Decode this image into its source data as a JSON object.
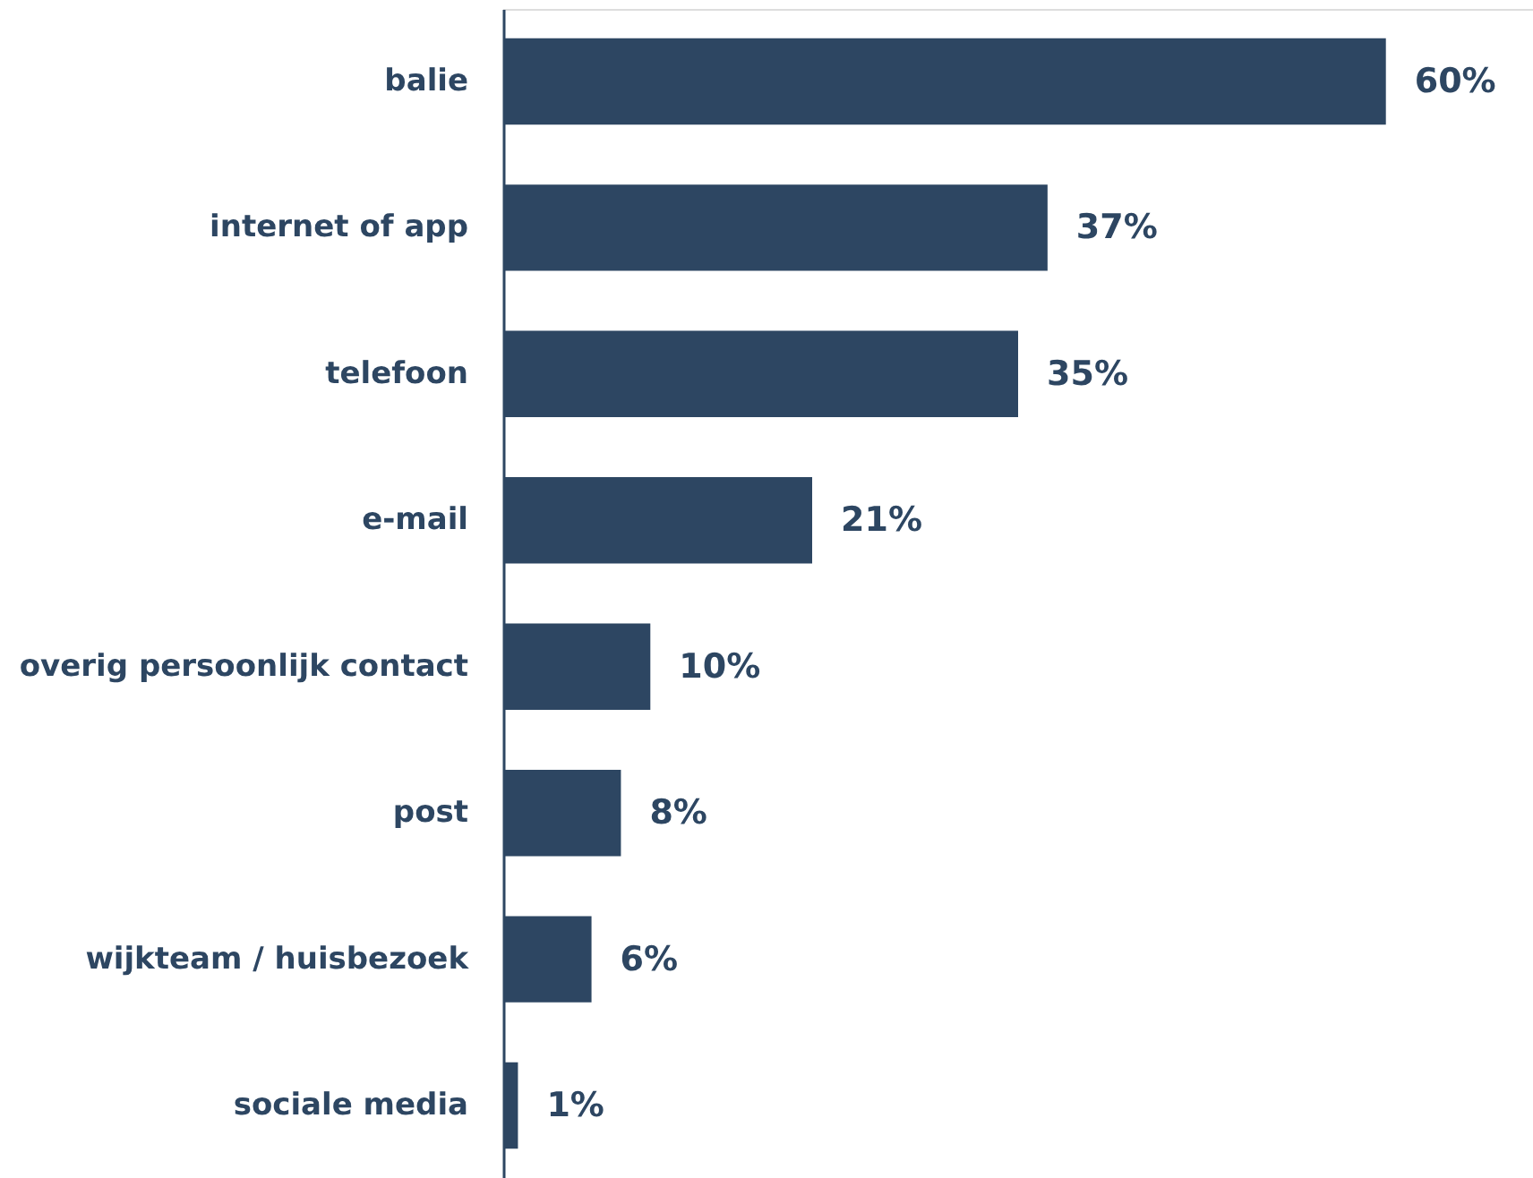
{
  "chart_data": {
    "type": "bar",
    "orientation": "horizontal",
    "categories": [
      "balie",
      "internet of app",
      "telefoon",
      "e-mail",
      "overig persoonlijk contact",
      "post",
      "wijkteam / huisbezoek",
      "sociale media"
    ],
    "values": [
      60,
      37,
      35,
      21,
      10,
      8,
      6,
      1
    ],
    "value_labels": [
      "60%",
      "37%",
      "35%",
      "21%",
      "10%",
      "8%",
      "6%",
      "1%"
    ],
    "color": "#2d4662",
    "xlim": [
      0,
      70
    ],
    "tick_labels": "y"
  }
}
